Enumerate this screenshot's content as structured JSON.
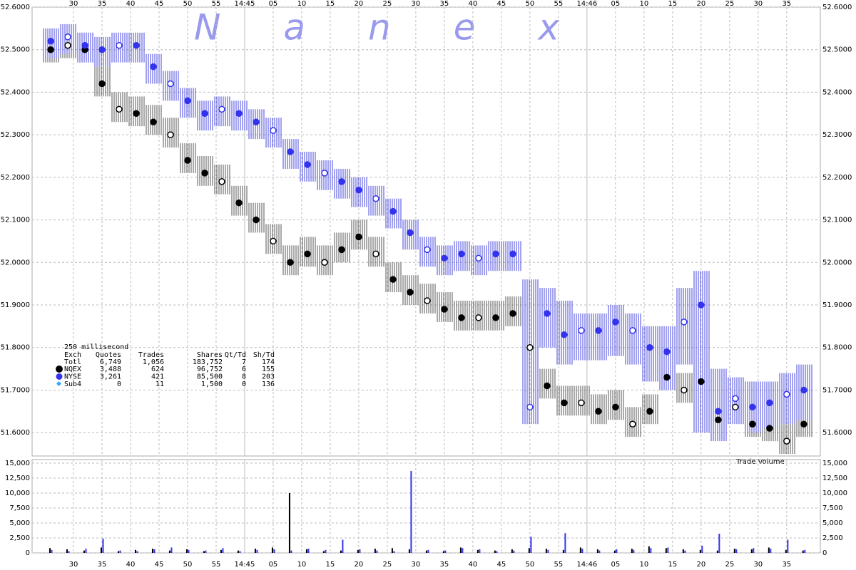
{
  "chart_data": [
    {
      "type": "scatter",
      "watermark": "Nanex",
      "annotation": "Trade Volume",
      "xlim": [
        22.75,
        160.9
      ],
      "ylim": [
        51.545,
        52.6
      ],
      "grid": true,
      "xticks": [
        30,
        35,
        40,
        45,
        50,
        55,
        {
          "value": 60,
          "label": "14:45"
        },
        {
          "value": 65,
          "label": "05"
        },
        {
          "value": 70,
          "label": "10"
        },
        {
          "value": 75,
          "label": "15"
        },
        {
          "value": 80,
          "label": "20"
        },
        {
          "value": 85,
          "label": "25"
        },
        {
          "value": 90,
          "label": "30"
        },
        {
          "value": 95,
          "label": "35"
        },
        {
          "value": 100,
          "label": "40"
        },
        {
          "value": 105,
          "label": "45"
        },
        {
          "value": 110,
          "label": "50"
        },
        {
          "value": 115,
          "label": "55"
        },
        {
          "value": 120,
          "label": "14:46"
        },
        {
          "value": 125,
          "label": "05"
        },
        {
          "value": 130,
          "label": "10"
        },
        {
          "value": 135,
          "label": "15"
        },
        {
          "value": 140,
          "label": "20"
        },
        {
          "value": 145,
          "label": "25"
        },
        {
          "value": 150,
          "label": "30"
        },
        {
          "value": 155,
          "label": "35"
        }
      ],
      "yticks": [
        {
          "value": 51.6,
          "label": "51.6000"
        },
        {
          "value": 51.7,
          "label": "51.7000"
        },
        {
          "value": 51.8,
          "label": "51.8000"
        },
        {
          "value": 51.9,
          "label": "51.9000"
        },
        {
          "value": 52.0,
          "label": "52.0000"
        },
        {
          "value": 52.1,
          "label": "52.1000"
        },
        {
          "value": 52.2,
          "label": "52.2000"
        },
        {
          "value": 52.3,
          "label": "52.3000"
        },
        {
          "value": 52.4,
          "label": "52.4000"
        },
        {
          "value": 52.5,
          "label": "52.5000"
        },
        {
          "value": 52.6,
          "label": "52.6000"
        }
      ],
      "stats": {
        "title": "250 millisecond",
        "columns": [
          "Exch",
          "Quotes",
          "Trades",
          "Shares",
          "Qt/Td",
          "Sh/Td"
        ],
        "total": [
          "Totl",
          "6,749",
          "1,056",
          "183,752",
          "7",
          "174"
        ],
        "sub4": [
          "Sub4",
          "0",
          "11",
          "1,500",
          "0",
          "136"
        ],
        "sub4_color": "#33aaff"
      },
      "x": [
        26,
        29,
        32,
        35,
        38,
        41,
        44,
        47,
        50,
        53,
        56,
        59,
        62,
        65,
        68,
        71,
        74,
        77,
        80,
        83,
        86,
        89,
        92,
        95,
        98,
        101,
        104,
        107,
        110,
        113,
        116,
        119,
        122,
        125,
        128,
        131,
        134,
        137,
        140,
        143,
        146,
        149,
        152,
        155,
        158
      ],
      "series": [
        {
          "name": "NQEX",
          "color": "#000000",
          "stats": [
            "3,488",
            "624",
            "96,752",
            "6",
            "155"
          ],
          "values": [
            52.5,
            52.51,
            52.5,
            52.42,
            52.36,
            52.35,
            52.33,
            52.3,
            52.24,
            52.21,
            52.19,
            52.14,
            52.1,
            52.05,
            52.0,
            52.02,
            52.0,
            52.03,
            52.06,
            52.02,
            51.96,
            51.93,
            51.91,
            51.89,
            51.87,
            51.87,
            51.87,
            51.88,
            51.8,
            51.71,
            51.67,
            51.67,
            51.65,
            51.66,
            51.62,
            51.65,
            51.73,
            51.7,
            51.72,
            51.63,
            51.66,
            51.62,
            51.61,
            51.58,
            51.62
          ],
          "high": [
            52.54,
            52.55,
            52.54,
            52.46,
            52.4,
            52.39,
            52.37,
            52.34,
            52.28,
            52.25,
            52.23,
            52.18,
            52.14,
            52.09,
            52.04,
            52.06,
            52.04,
            52.07,
            52.1,
            52.06,
            52.0,
            51.97,
            51.95,
            51.93,
            51.91,
            51.91,
            51.91,
            51.92,
            51.84,
            51.75,
            51.71,
            51.71,
            51.69,
            51.7,
            51.66,
            51.69,
            51.77,
            51.74,
            51.76,
            51.67,
            51.7,
            51.66,
            51.65,
            51.62,
            51.66
          ],
          "low": [
            52.47,
            52.48,
            52.47,
            52.39,
            52.33,
            52.32,
            52.3,
            52.27,
            52.21,
            52.18,
            52.16,
            52.11,
            52.07,
            52.02,
            51.97,
            51.99,
            51.97,
            52.0,
            52.03,
            51.99,
            51.93,
            51.9,
            51.88,
            51.86,
            51.84,
            51.84,
            51.84,
            51.85,
            51.77,
            51.68,
            51.64,
            51.64,
            51.62,
            51.63,
            51.59,
            51.62,
            51.7,
            51.67,
            51.69,
            51.6,
            51.63,
            51.59,
            51.58,
            51.55,
            51.59
          ]
        },
        {
          "name": "NYSE",
          "color": "#3333ee",
          "stats": [
            "3,261",
            "421",
            "85,500",
            "8",
            "203"
          ],
          "values": [
            52.52,
            52.53,
            52.51,
            52.5,
            52.51,
            52.51,
            52.46,
            52.42,
            52.38,
            52.35,
            52.36,
            52.35,
            52.33,
            52.31,
            52.26,
            52.23,
            52.21,
            52.19,
            52.17,
            52.15,
            52.12,
            52.07,
            52.03,
            52.01,
            52.02,
            52.01,
            52.02,
            52.02,
            51.66,
            51.88,
            51.83,
            51.84,
            51.84,
            51.86,
            51.84,
            51.8,
            51.79,
            51.86,
            51.9,
            51.65,
            51.68,
            51.66,
            51.67,
            51.69,
            51.7
          ],
          "high": [
            52.55,
            52.56,
            52.54,
            52.53,
            52.54,
            52.54,
            52.49,
            52.45,
            52.41,
            52.38,
            52.39,
            52.38,
            52.36,
            52.34,
            52.29,
            52.26,
            52.24,
            52.22,
            52.2,
            52.18,
            52.15,
            52.1,
            52.06,
            52.04,
            52.05,
            52.04,
            52.05,
            52.05,
            51.96,
            51.94,
            51.91,
            51.88,
            51.88,
            51.9,
            51.88,
            51.85,
            51.85,
            51.94,
            51.98,
            51.75,
            51.73,
            51.72,
            51.72,
            51.74,
            51.76
          ],
          "low": [
            52.48,
            52.49,
            52.47,
            52.46,
            52.47,
            52.47,
            52.42,
            52.38,
            52.34,
            52.31,
            52.32,
            52.31,
            52.29,
            52.27,
            52.22,
            52.19,
            52.17,
            52.15,
            52.13,
            52.11,
            52.08,
            52.03,
            51.99,
            51.97,
            51.98,
            51.97,
            51.98,
            51.98,
            51.62,
            51.8,
            51.76,
            51.77,
            51.77,
            51.78,
            51.76,
            51.72,
            51.7,
            51.76,
            51.6,
            51.58,
            51.62,
            51.6,
            51.61,
            51.62,
            51.63
          ]
        }
      ]
    },
    {
      "type": "bar",
      "xlim": [
        22.75,
        160.9
      ],
      "ylim": [
        0,
        15600
      ],
      "grid": true,
      "xticks": [
        30,
        35,
        40,
        45,
        50,
        55,
        {
          "value": 60,
          "label": "14:45"
        },
        {
          "value": 65,
          "label": "05"
        },
        {
          "value": 70,
          "label": "10"
        },
        {
          "value": 75,
          "label": "15"
        },
        {
          "value": 80,
          "label": "20"
        },
        {
          "value": 85,
          "label": "25"
        },
        {
          "value": 90,
          "label": "30"
        },
        {
          "value": 95,
          "label": "35"
        },
        {
          "value": 100,
          "label": "40"
        },
        {
          "value": 105,
          "label": "45"
        },
        {
          "value": 110,
          "label": "50"
        },
        {
          "value": 115,
          "label": "55"
        },
        {
          "value": 120,
          "label": "14:46"
        },
        {
          "value": 125,
          "label": "05"
        },
        {
          "value": 130,
          "label": "10"
        },
        {
          "value": 135,
          "label": "15"
        },
        {
          "value": 140,
          "label": "20"
        },
        {
          "value": 145,
          "label": "25"
        },
        {
          "value": 150,
          "label": "30"
        },
        {
          "value": 155,
          "label": "35"
        }
      ],
      "yticks": [
        0,
        {
          "value": 2500,
          "label": "2,500"
        },
        {
          "value": 5000,
          "label": "5,000"
        },
        {
          "value": 7500,
          "label": "7,500"
        },
        {
          "value": 10000,
          "label": "10,000"
        },
        {
          "value": 12500,
          "label": "12,500"
        },
        {
          "value": 15000,
          "label": "15,000"
        }
      ],
      "x": [
        26,
        29,
        32,
        35,
        38,
        41,
        44,
        47,
        50,
        53,
        56,
        59,
        62,
        65,
        68,
        71,
        74,
        77,
        80,
        83,
        86,
        89,
        92,
        95,
        98,
        101,
        104,
        107,
        110,
        113,
        116,
        119,
        122,
        125,
        128,
        131,
        134,
        137,
        140,
        143,
        146,
        149,
        152,
        155,
        158
      ],
      "series": [
        {
          "color": "#000000",
          "values": [
            800,
            600,
            400,
            900,
            300,
            500,
            700,
            400,
            600,
            300,
            500,
            400,
            700,
            900,
            10000,
            600,
            300,
            400,
            500,
            700,
            800,
            600,
            400,
            300,
            900,
            500,
            400,
            600,
            800,
            700,
            500,
            900,
            600,
            400,
            700,
            1100,
            800,
            600,
            500,
            400,
            700,
            600,
            900,
            500,
            400
          ]
        },
        {
          "color": "#3333ee",
          "values": [
            500,
            300,
            700,
            2400,
            400,
            300,
            600,
            900,
            500,
            400,
            800,
            300,
            500,
            600,
            400,
            700,
            500,
            2200,
            600,
            400,
            300,
            13700,
            500,
            400,
            800,
            600,
            300,
            400,
            2700,
            500,
            3300,
            700,
            400,
            600,
            500,
            800,
            900,
            400,
            1200,
            3200,
            600,
            800,
            700,
            2200,
            500
          ]
        }
      ]
    }
  ]
}
